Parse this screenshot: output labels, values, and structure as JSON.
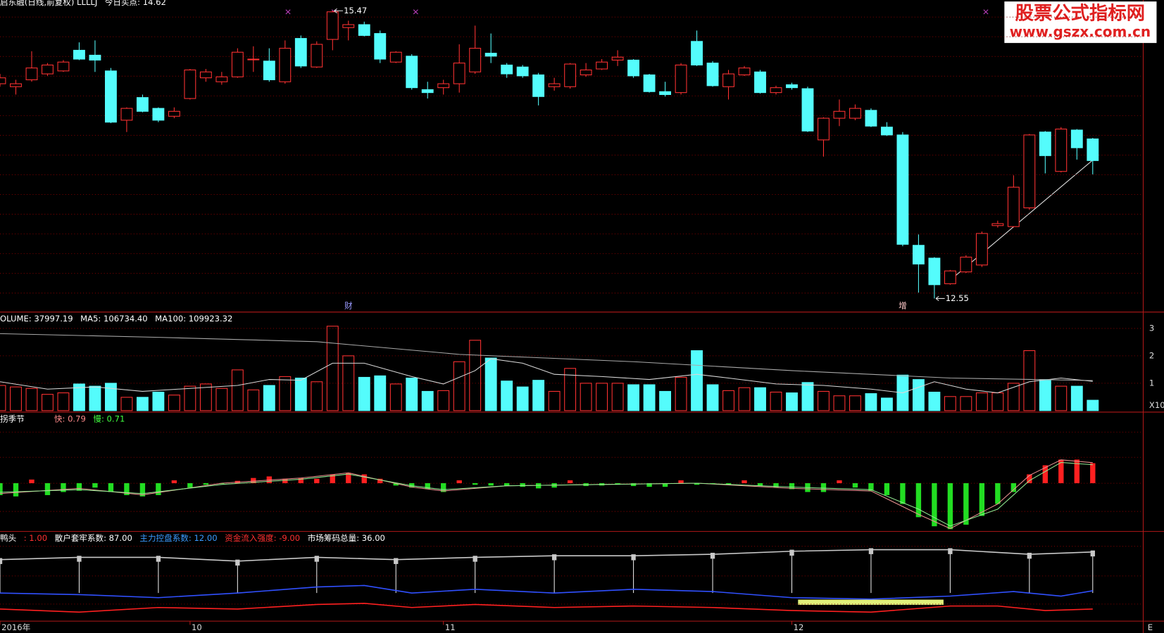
{
  "watermark": {
    "title": "股票公式指标网",
    "url": "www.gszx.com.cn"
  },
  "x_axis_end": "E",
  "chart_data": [
    {
      "type": "candlestick",
      "header": [
        {
          "text": "启东融(日线,前复权) LLLLJ",
          "color": "#ffffff"
        },
        {
          "text": "今日买点: 14.62",
          "color": "#ffffff"
        }
      ],
      "categories": [
        "2016年",
        null,
        null,
        null,
        null,
        null,
        null,
        null,
        null,
        null,
        null,
        null,
        "10",
        null,
        null,
        null,
        null,
        null,
        null,
        null,
        null,
        null,
        null,
        null,
        null,
        null,
        null,
        null,
        "11",
        null,
        null,
        null,
        null,
        null,
        null,
        null,
        null,
        null,
        null,
        null,
        null,
        null,
        null,
        null,
        null,
        null,
        null,
        null,
        null,
        null,
        "12",
        null,
        null,
        null,
        null,
        null,
        null,
        null,
        null,
        null,
        null,
        null,
        null,
        null,
        null,
        null,
        null,
        null,
        null,
        null
      ],
      "open": [
        14.73,
        14.7,
        14.77,
        14.83,
        14.86,
        15.07,
        15.02,
        14.86,
        14.36,
        14.59,
        14.48,
        14.4,
        14.58,
        14.79,
        14.75,
        14.8,
        14.98,
        14.96,
        14.75,
        15.19,
        14.9,
        15.18,
        15.3,
        15.33,
        15.24,
        14.95,
        15.01,
        14.67,
        14.69,
        14.73,
        14.85,
        15.04,
        14.92,
        14.9,
        14.82,
        14.7,
        14.7,
        14.82,
        14.88,
        14.97,
        14.97,
        14.82,
        14.65,
        14.64,
        15.16,
        14.94,
        14.7,
        14.82,
        14.85,
        14.64,
        14.72,
        14.68,
        14.16,
        14.38,
        14.38,
        14.46,
        14.29,
        14.21,
        13.09,
        12.96,
        12.7,
        12.82,
        12.89,
        13.29,
        13.28,
        13.47,
        14.24,
        13.84,
        14.26,
        14.17
      ],
      "high": [
        14.83,
        14.77,
        15.06,
        14.94,
        14.97,
        15.15,
        15.17,
        14.89,
        14.49,
        14.62,
        14.49,
        14.49,
        14.88,
        14.88,
        14.85,
        15.09,
        15.11,
        15.09,
        15.17,
        15.22,
        15.16,
        15.47,
        15.37,
        15.36,
        15.27,
        15.06,
        15.03,
        14.75,
        14.77,
        15.13,
        15.32,
        15.24,
        14.94,
        14.92,
        14.84,
        14.79,
        14.94,
        14.94,
        14.98,
        15.07,
        14.98,
        14.83,
        14.75,
        14.94,
        15.27,
        14.96,
        14.87,
        14.91,
        14.87,
        14.71,
        14.74,
        14.7,
        14.39,
        14.57,
        14.52,
        14.48,
        14.34,
        14.24,
        13.2,
        12.97,
        12.84,
        12.99,
        13.23,
        13.34,
        13.8,
        14.22,
        14.25,
        14.29,
        14.27,
        14.18
      ],
      "low": [
        14.7,
        14.62,
        14.75,
        14.81,
        14.85,
        14.97,
        14.85,
        14.33,
        14.24,
        14.44,
        14.34,
        14.38,
        14.57,
        14.75,
        14.72,
        14.79,
        14.85,
        14.75,
        14.73,
        14.89,
        14.89,
        15.07,
        15.17,
        15.21,
        14.94,
        14.94,
        14.67,
        14.58,
        14.62,
        14.64,
        14.83,
        14.94,
        14.79,
        14.79,
        14.51,
        14.66,
        14.68,
        14.8,
        14.87,
        14.91,
        14.79,
        14.64,
        14.6,
        14.62,
        14.91,
        14.7,
        14.57,
        14.81,
        14.63,
        14.62,
        14.67,
        14.24,
        13.99,
        14.3,
        14.36,
        14.29,
        14.2,
        13.08,
        12.61,
        12.55,
        12.69,
        12.81,
        12.87,
        13.27,
        13.27,
        13.45,
        13.82,
        13.83,
        13.96,
        13.81
      ],
      "close": [
        14.79,
        14.73,
        14.89,
        14.92,
        14.95,
        14.98,
        14.97,
        14.34,
        14.48,
        14.45,
        14.36,
        14.45,
        14.87,
        14.85,
        14.8,
        15.05,
        14.98,
        14.77,
        15.09,
        14.91,
        15.13,
        15.46,
        15.33,
        15.22,
        14.98,
        15.05,
        14.69,
        14.64,
        14.73,
        14.94,
        15.09,
        15.01,
        14.83,
        14.81,
        14.6,
        14.73,
        14.93,
        14.87,
        14.95,
        15.0,
        14.81,
        14.65,
        14.62,
        14.92,
        14.92,
        14.71,
        14.83,
        14.89,
        14.64,
        14.69,
        14.69,
        14.25,
        14.38,
        14.45,
        14.48,
        14.3,
        14.21,
        13.1,
        12.9,
        12.69,
        12.83,
        12.97,
        13.21,
        13.31,
        13.68,
        14.21,
        14.0,
        14.27,
        14.08,
        13.95
      ],
      "ylim": [
        12.42,
        15.58
      ],
      "up_color": "#ff3232",
      "down_color": "#54fcfc",
      "annotations": [
        {
          "index": 21,
          "value": 15.47
        },
        {
          "index": 59,
          "value": 12.55
        }
      ],
      "markers": [
        {
          "index": 22,
          "text": "财",
          "color": "#9a9aff"
        },
        {
          "index": 57,
          "text": "增",
          "color": "#ffc8c8"
        }
      ]
    },
    {
      "type": "bar",
      "header": [
        {
          "text": "OLUME: 37997.19",
          "color": "#ffffff"
        },
        {
          "text": "MA5: 106734.40",
          "color": "#ffffff"
        },
        {
          "text": "MA100: 109923.32",
          "color": "#ffffff"
        }
      ],
      "values": [
        91900,
        86500,
        81100,
        59500,
        64900,
        97300,
        89200,
        100000,
        48700,
        48700,
        67600,
        56800,
        89200,
        97300,
        81100,
        148700,
        75700,
        91900,
        124300,
        118900,
        105400,
        308100,
        200000,
        121600,
        127000,
        97300,
        118900,
        70300,
        73000,
        178400,
        256800,
        191900,
        108100,
        86500,
        110800,
        70300,
        154100,
        100000,
        100000,
        100000,
        94600,
        94600,
        70300,
        121600,
        218900,
        94600,
        73000,
        83800,
        83800,
        67600,
        64900,
        102700,
        70300,
        54100,
        54100,
        62200,
        46000,
        129700,
        113500,
        67600,
        51400,
        51400,
        64900,
        64900,
        100000,
        218900,
        113500,
        89200,
        89200,
        37997.19
      ],
      "ylim": [
        0,
        357000
      ],
      "yticks": [
        {
          "value": 100000,
          "label": "1"
        },
        {
          "value": 200000,
          "label": "2"
        },
        {
          "value": 300000,
          "label": "3"
        }
      ],
      "unit_label": "X10",
      "lines": [
        {
          "color": "#d8d8d8",
          "x": [
            0,
            3,
            6,
            9,
            12,
            15,
            17,
            19,
            21,
            23,
            26,
            28,
            30,
            31,
            33,
            35,
            38,
            41,
            44,
            46,
            49,
            52,
            55,
            57,
            59,
            61,
            63,
            65,
            67,
            69
          ],
          "values": [
            105400,
            78400,
            86500,
            70300,
            81100,
            91900,
            113500,
            110800,
            173000,
            173000,
            124300,
            97300,
            146000,
            189200,
            173000,
            132400,
            124300,
            113500,
            132400,
            118900,
            97300,
            91900,
            78400,
            64900,
            105400,
            78400,
            64900,
            105400,
            118900,
            106734.4
          ]
        },
        {
          "color": "#a8a8a8",
          "x": [
            0,
            10,
            20,
            29,
            40,
            50,
            60,
            69
          ],
          "values": [
            281100,
            267600,
            251400,
            205400,
            178400,
            146000,
            118900,
            109923.32
          ]
        }
      ]
    },
    {
      "type": "bar",
      "header": [
        {
          "text": "拐季节",
          "color": "#ffffff"
        },
        {
          "text": "快: 0.79",
          "color": "#ff8a8a"
        },
        {
          "text": "慢: 0.71",
          "color": "#40ff40"
        }
      ],
      "values": [
        -0.46,
        -0.51,
        0.14,
        -0.46,
        -0.34,
        -0.29,
        -0.17,
        -0.34,
        -0.46,
        -0.51,
        -0.46,
        0.11,
        -0.17,
        -0.06,
        -0.03,
        0.09,
        0.2,
        0.26,
        0.17,
        0.2,
        0.17,
        0.34,
        0.4,
        0.34,
        0.17,
        -0.09,
        -0.17,
        -0.23,
        -0.34,
        0.11,
        -0.06,
        -0.09,
        -0.11,
        -0.14,
        -0.2,
        -0.17,
        0.11,
        -0.11,
        -0.09,
        -0.06,
        -0.11,
        -0.14,
        -0.14,
        0.11,
        -0.06,
        -0.03,
        -0.06,
        0.11,
        -0.11,
        -0.17,
        -0.23,
        -0.34,
        -0.34,
        0.11,
        -0.17,
        -0.29,
        -0.46,
        -0.8,
        -1.31,
        -1.66,
        -1.77,
        -1.6,
        -1.26,
        -0.8,
        -0.34,
        0.34,
        0.69,
        0.91,
        0.91,
        0.77
      ],
      "ylim": [
        -1.86,
        2.71
      ],
      "pos_color": "#ff2020",
      "neg_color": "#22dd22",
      "lines": [
        {
          "color": "#e89090",
          "x": [
            0,
            5,
            9,
            14,
            19,
            22,
            26,
            28,
            32,
            38,
            44,
            50,
            55,
            58,
            60,
            63,
            65,
            67,
            69
          ],
          "values": [
            -0.4,
            -0.2,
            -0.45,
            0,
            0.2,
            0.4,
            -0.15,
            -0.3,
            -0.1,
            -0.05,
            0,
            -0.2,
            -0.3,
            -1.2,
            -1.75,
            -0.8,
            0.3,
            0.9,
            0.79
          ]
        },
        {
          "color": "#90e890",
          "x": [
            0,
            5,
            9,
            14,
            19,
            22,
            26,
            28,
            32,
            38,
            44,
            50,
            55,
            58,
            60,
            63,
            65,
            67,
            69
          ],
          "values": [
            -0.35,
            -0.25,
            -0.4,
            -0.05,
            0.15,
            0.35,
            -0.1,
            -0.25,
            -0.1,
            -0.05,
            0,
            -0.15,
            -0.25,
            -1.0,
            -1.65,
            -1.0,
            0.1,
            0.8,
            0.71
          ]
        }
      ]
    },
    {
      "type": "line",
      "header": [
        {
          "text": "鸭头",
          "color": "#ffffff"
        },
        {
          "text": ": 1.00",
          "color": "#ff3030"
        },
        {
          "text": "散户套牢系数: 87.00",
          "color": "#ffffff"
        },
        {
          "text": "主力控盘系数: 12.00",
          "color": "#3a9bff"
        },
        {
          "text": "资金流入强度: -9.00",
          "color": "#ff3030"
        },
        {
          "text": "市场筹码总量: 36.00",
          "color": "#ffffff"
        }
      ],
      "ylim": [
        -3.9,
        113
      ],
      "series": [
        {
          "color": "#c8c8c8",
          "sticks": true,
          "x": [
            0,
            5,
            10,
            15,
            20,
            25,
            30,
            35,
            40,
            45,
            50,
            55,
            60,
            65,
            69
          ],
          "values": [
            77,
            80,
            80,
            75,
            80,
            77,
            80,
            82,
            82,
            84,
            88,
            90,
            90,
            84,
            87
          ]
        },
        {
          "color": "#3050ff",
          "x": [
            0,
            5,
            10,
            15,
            20,
            23,
            26,
            30,
            35,
            40,
            45,
            50,
            55,
            60,
            64,
            67,
            69
          ],
          "values": [
            33,
            31,
            27,
            33,
            41,
            43,
            33,
            38,
            33,
            38,
            35,
            27,
            25,
            29,
            35,
            29,
            36
          ]
        },
        {
          "color": "#ff2020",
          "x": [
            0,
            5,
            10,
            15,
            20,
            23,
            26,
            30,
            35,
            40,
            45,
            50,
            55,
            60,
            63,
            66,
            69
          ],
          "values": [
            12,
            8,
            14,
            12,
            18,
            19.5,
            14,
            18,
            14,
            16,
            14,
            10,
            8,
            16,
            16,
            10,
            12
          ]
        }
      ]
    }
  ]
}
